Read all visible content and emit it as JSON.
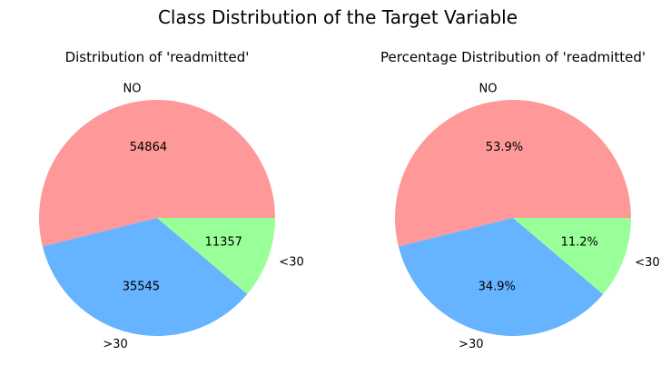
{
  "figure": {
    "title": "Class Distribution of the Target Variable"
  },
  "chart_data": [
    {
      "type": "pie",
      "title": "Distribution of 'readmitted'",
      "categories": [
        "NO",
        ">30",
        "<30"
      ],
      "values": [
        54864,
        35545,
        11357
      ],
      "value_labels": [
        "54864",
        "35545",
        "11357"
      ],
      "colors": [
        "#ff9999",
        "#66b3ff",
        "#99ff99"
      ],
      "start_angle_deg": 0,
      "direction": "counterclockwise"
    },
    {
      "type": "pie",
      "title": "Percentage Distribution of 'readmitted'",
      "categories": [
        "NO",
        ">30",
        "<30"
      ],
      "values": [
        53.9,
        34.9,
        11.2
      ],
      "value_labels": [
        "53.9%",
        "34.9%",
        "11.2%"
      ],
      "colors": [
        "#ff9999",
        "#66b3ff",
        "#99ff99"
      ],
      "start_angle_deg": 0,
      "direction": "counterclockwise"
    }
  ]
}
